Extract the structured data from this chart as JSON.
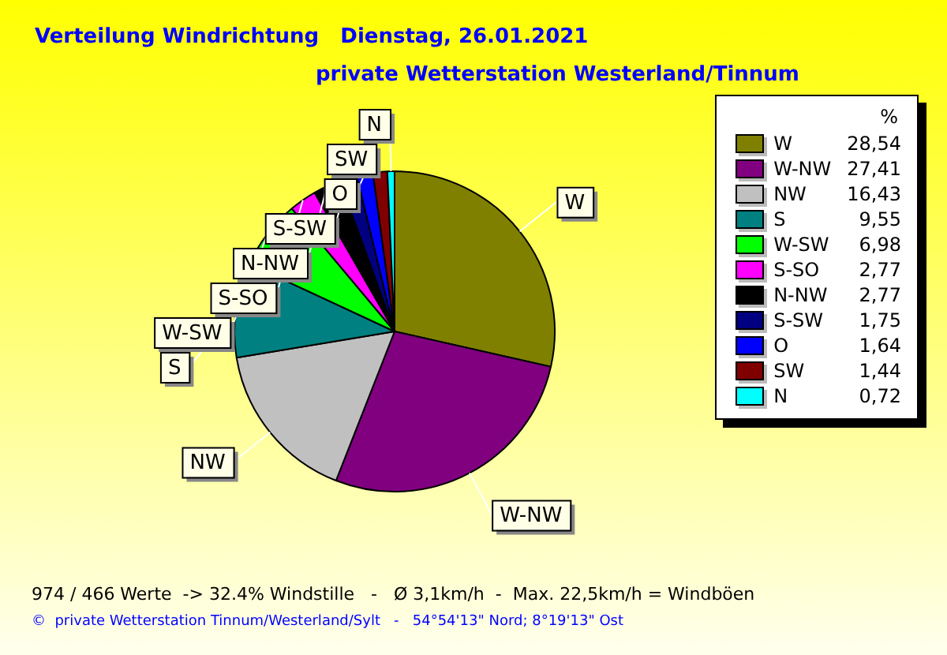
{
  "chart_data": {
    "type": "pie",
    "title": "Verteilung Windrichtung   Dienstag, 26.01.2021",
    "subtitle": "private Wetterstation Westerland/Tinnum",
    "legend_title": "%",
    "legend": "right",
    "categories": [
      "W",
      "W-NW",
      "NW",
      "S",
      "W-SW",
      "S-SO",
      "N-NW",
      "S-SW",
      "O",
      "SW",
      "N"
    ],
    "values": [
      28.54,
      27.41,
      16.43,
      9.55,
      6.98,
      2.77,
      2.77,
      1.75,
      1.64,
      1.44,
      0.72
    ],
    "value_labels": [
      "28,54",
      "27,41",
      "16,43",
      "9,55",
      "6,98",
      "2,77",
      "2,77",
      "1,75",
      "1,64",
      "1,44",
      "0,72"
    ],
    "colors": [
      "#808000",
      "#800080",
      "#c0c0c0",
      "#008080",
      "#00ff00",
      "#ff00ff",
      "#000000",
      "#000080",
      "#0000ff",
      "#800000",
      "#00ffff"
    ],
    "annotations": [
      "974 / 466 Werte  -> 32.4% Windstille   -   Ø 3,1km/h  -  Max. 22,5km/h = Windböen",
      "©  private Wetterstation Tinnum/Westerland/Sylt   -   54°54'13\" Nord; 8°19'13\" Ost"
    ]
  }
}
